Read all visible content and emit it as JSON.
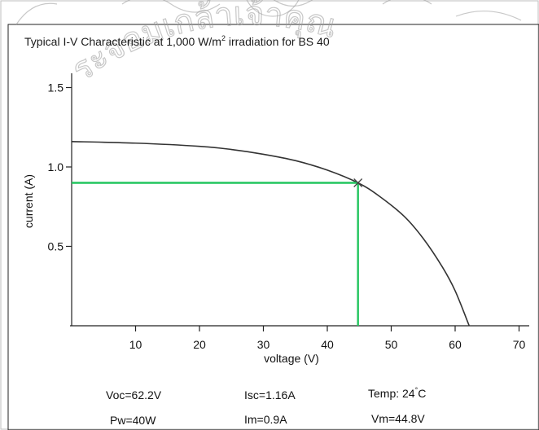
{
  "chart_data": {
    "type": "line",
    "title": "Typical I-V Characteristic at 1,000 W/m",
    "title_superscript": "2",
    "title_suffix": " irradiation for BS 40",
    "xlabel": "voltage (V)",
    "ylabel": "current (A)",
    "xlim": [
      0,
      73
    ],
    "ylim": [
      0,
      1.5
    ],
    "x_ticks": [
      "10",
      "20",
      "30",
      "40",
      "50",
      "60",
      "70"
    ],
    "y_ticks": [
      "0.5",
      "1.0",
      "1.5"
    ],
    "grid": false,
    "series": [
      {
        "x": [
          0,
          10,
          20,
          25,
          30,
          35,
          40,
          44.8,
          48,
          52,
          55,
          58,
          60,
          62.2
        ],
        "y": [
          1.16,
          1.15,
          1.13,
          1.11,
          1.08,
          1.04,
          0.98,
          0.9,
          0.82,
          0.69,
          0.55,
          0.37,
          0.22,
          0.0
        ],
        "color": "#333333"
      }
    ],
    "max_power_point": {
      "x": 44.8,
      "y": 0.9,
      "color": "#22c55e"
    },
    "parameters": [
      {
        "text": "Voc=62.2V"
      },
      {
        "text": "Isc=1.16A"
      },
      {
        "text": "Temp: 24",
        "superscript": "°",
        "suffix": "C"
      },
      {
        "text": "Pw=40W"
      },
      {
        "text": "Im=0.9A"
      },
      {
        "text": "Vm=44.8V"
      }
    ]
  },
  "watermark": {
    "text": "ระจอมเกล้าเจ้าคุณ",
    "color": "#9a9a9a"
  }
}
